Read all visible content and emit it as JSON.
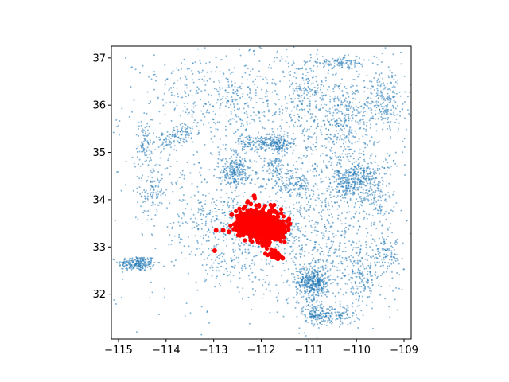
{
  "chart_data": {
    "type": "scatter",
    "title": "",
    "xlabel": "",
    "ylabel": "",
    "xlim": [
      -115.15,
      -108.85
    ],
    "ylim": [
      31.05,
      37.25
    ],
    "x_ticks": [
      -115,
      -114,
      -113,
      -112,
      -111,
      -110,
      -109
    ],
    "y_ticks": [
      32,
      33,
      34,
      35,
      36,
      37
    ],
    "x_tick_labels": [
      "−115",
      "−114",
      "−113",
      "−112",
      "−111",
      "−110",
      "−109"
    ],
    "y_tick_labels": [
      "32",
      "33",
      "34",
      "35",
      "36",
      "37"
    ],
    "grid": false,
    "legend": "none",
    "series": [
      {
        "role": "background-points",
        "color": "#1f77b4",
        "clusters": [
          {
            "x": -114.6,
            "y": 32.65,
            "sx": 0.2,
            "sy": 0.08,
            "n": 220
          },
          {
            "x": -114.3,
            "y": 34.15,
            "sx": 0.12,
            "sy": 0.25,
            "n": 90
          },
          {
            "x": -114.45,
            "y": 35.2,
            "sx": 0.08,
            "sy": 0.25,
            "n": 80
          },
          {
            "x": -114.0,
            "y": 35.25,
            "sx": 0.12,
            "sy": 0.1,
            "n": 60
          },
          {
            "x": -113.6,
            "y": 35.4,
            "sx": 0.15,
            "sy": 0.1,
            "n": 60
          },
          {
            "x": -112.55,
            "y": 34.6,
            "sx": 0.15,
            "sy": 0.15,
            "n": 200
          },
          {
            "x": -112.1,
            "y": 35.2,
            "sx": 0.3,
            "sy": 0.08,
            "n": 120
          },
          {
            "x": -111.65,
            "y": 35.2,
            "sx": 0.15,
            "sy": 0.1,
            "n": 140
          },
          {
            "x": -111.35,
            "y": 34.3,
            "sx": 0.25,
            "sy": 0.12,
            "n": 120
          },
          {
            "x": -111.7,
            "y": 34.7,
            "sx": 0.1,
            "sy": 0.1,
            "n": 60
          },
          {
            "x": -110.9,
            "y": 32.25,
            "sx": 0.18,
            "sy": 0.18,
            "n": 420
          },
          {
            "x": -110.5,
            "y": 31.55,
            "sx": 0.25,
            "sy": 0.1,
            "n": 150
          },
          {
            "x": -110.9,
            "y": 31.6,
            "sx": 0.12,
            "sy": 0.1,
            "n": 100
          },
          {
            "x": -109.95,
            "y": 34.5,
            "sx": 0.22,
            "sy": 0.15,
            "n": 220
          },
          {
            "x": -110.2,
            "y": 34.2,
            "sx": 0.3,
            "sy": 0.15,
            "n": 120
          },
          {
            "x": -109.55,
            "y": 34.1,
            "sx": 0.15,
            "sy": 0.2,
            "n": 80
          },
          {
            "x": -109.4,
            "y": 36.1,
            "sx": 0.25,
            "sy": 0.35,
            "n": 200
          },
          {
            "x": -110.25,
            "y": 35.8,
            "sx": 0.25,
            "sy": 0.3,
            "n": 160
          },
          {
            "x": -111.05,
            "y": 36.3,
            "sx": 0.3,
            "sy": 0.3,
            "n": 120
          },
          {
            "x": -110.3,
            "y": 36.9,
            "sx": 0.35,
            "sy": 0.06,
            "n": 120
          },
          {
            "x": -109.9,
            "y": 32.3,
            "sx": 0.15,
            "sy": 0.3,
            "n": 120
          },
          {
            "x": -109.4,
            "y": 32.8,
            "sx": 0.15,
            "sy": 0.2,
            "n": 80
          },
          {
            "x": -112.0,
            "y": 33.35,
            "sx": 0.5,
            "sy": 0.2,
            "n": 200
          },
          {
            "x": -112.7,
            "y": 32.6,
            "sx": 0.3,
            "sy": 0.2,
            "n": 80
          },
          {
            "x": -113.0,
            "y": 33.6,
            "sx": 0.3,
            "sy": 0.25,
            "n": 80
          },
          {
            "x": -112.6,
            "y": 36.2,
            "sx": 0.3,
            "sy": 0.3,
            "n": 80
          },
          {
            "x": -113.5,
            "y": 36.3,
            "sx": 0.4,
            "sy": 0.3,
            "n": 60
          },
          {
            "x": -112.0,
            "y": 36.0,
            "sx": 1.3,
            "sy": 0.9,
            "n": 600
          },
          {
            "x": -112.0,
            "y": 34.0,
            "sx": 1.5,
            "sy": 1.2,
            "n": 900
          },
          {
            "x": -110.5,
            "y": 33.0,
            "sx": 0.8,
            "sy": 0.6,
            "n": 400
          },
          {
            "x": -110.3,
            "y": 35.0,
            "sx": 0.7,
            "sy": 0.7,
            "n": 350
          }
        ]
      },
      {
        "role": "highlighted-points",
        "color": "#ff0000",
        "clusters": [
          {
            "x": -112.05,
            "y": 33.5,
            "sx": 0.2,
            "sy": 0.14,
            "n": 900
          },
          {
            "x": -111.75,
            "y": 33.35,
            "sx": 0.1,
            "sy": 0.1,
            "n": 180
          },
          {
            "x": -112.4,
            "y": 33.45,
            "sx": 0.07,
            "sy": 0.06,
            "n": 80
          },
          {
            "x": -111.72,
            "y": 32.85,
            "sx": 0.06,
            "sy": 0.06,
            "n": 30
          },
          {
            "x": -111.95,
            "y": 33.1,
            "sx": 0.05,
            "sy": 0.04,
            "n": 20
          },
          {
            "x": -111.55,
            "y": 33.35,
            "sx": 0.05,
            "sy": 0.05,
            "n": 20
          }
        ],
        "points": [
          {
            "x": -112.15,
            "y": 34.08
          },
          {
            "x": -112.62,
            "y": 33.68
          },
          {
            "x": -112.8,
            "y": 33.35
          },
          {
            "x": -112.68,
            "y": 33.32
          },
          {
            "x": -112.95,
            "y": 33.35
          },
          {
            "x": -112.98,
            "y": 32.92
          },
          {
            "x": -111.65,
            "y": 32.75
          },
          {
            "x": -111.55,
            "y": 32.76
          },
          {
            "x": -111.78,
            "y": 32.82
          }
        ]
      }
    ]
  }
}
